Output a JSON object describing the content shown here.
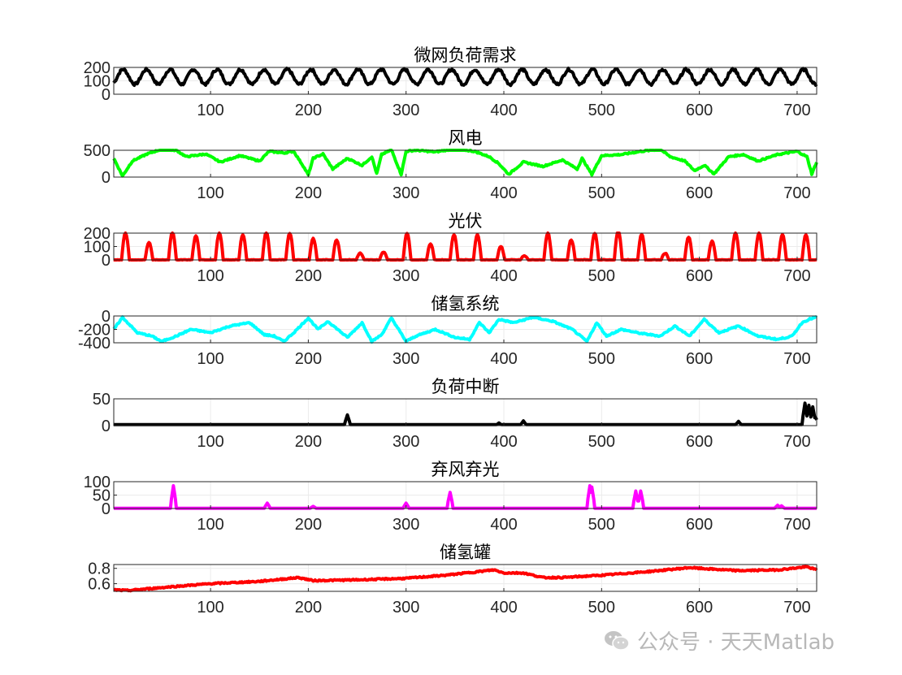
{
  "watermark": {
    "text": "公众号 · 天天Matlab",
    "icon": "wechat-icon"
  },
  "chart_data": [
    {
      "type": "line",
      "title": "微网负荷需求",
      "color": "#000000",
      "xlim": [
        1,
        720
      ],
      "xticks": [
        100,
        200,
        300,
        400,
        500,
        600,
        700
      ],
      "ylim": [
        0,
        200
      ],
      "yticks": [
        0,
        100,
        200
      ],
      "pattern": "daily",
      "base": 130,
      "amp": 55,
      "noise": 10,
      "series": [
        {
          "x": [
            1,
            720
          ],
          "y": [
            80,
            185
          ]
        }
      ]
    },
    {
      "type": "line",
      "title": "风电",
      "color": "#00ff00",
      "xlim": [
        1,
        720
      ],
      "xticks": [
        100,
        200,
        300,
        400,
        500,
        600,
        700
      ],
      "ylim": [
        0,
        500
      ],
      "yticks": [
        0,
        500
      ],
      "pattern": "keypoints",
      "series": [
        {
          "x": [
            1,
            10,
            20,
            35,
            50,
            65,
            75,
            95,
            110,
            130,
            150,
            160,
            175,
            185,
            195,
            200,
            205,
            215,
            225,
            240,
            255,
            265,
            270,
            275,
            285,
            295,
            300,
            310,
            330,
            350,
            370,
            385,
            395,
            405,
            420,
            440,
            460,
            475,
            480,
            490,
            500,
            520,
            540,
            560,
            570,
            585,
            595,
            605,
            615,
            630,
            645,
            660,
            680,
            700,
            710,
            715,
            720
          ],
          "y": [
            350,
            20,
            300,
            430,
            520,
            500,
            380,
            430,
            280,
            400,
            300,
            480,
            450,
            480,
            200,
            40,
            350,
            430,
            150,
            350,
            220,
            380,
            60,
            420,
            510,
            50,
            480,
            500,
            470,
            530,
            480,
            380,
            250,
            50,
            280,
            200,
            320,
            150,
            350,
            50,
            400,
            420,
            480,
            520,
            380,
            300,
            120,
            220,
            60,
            380,
            420,
            300,
            420,
            480,
            380,
            60,
            280
          ]
        }
      ]
    },
    {
      "type": "line",
      "title": "光伏",
      "color": "#ff0000",
      "xlim": [
        1,
        720
      ],
      "xticks": [
        100,
        200,
        300,
        400,
        500,
        600,
        700
      ],
      "ylim": [
        0,
        200
      ],
      "yticks": [
        0,
        100,
        200
      ],
      "pattern": "pv",
      "peaks": [
        200,
        130,
        210,
        180,
        200,
        190,
        210,
        200,
        160,
        150,
        50,
        60,
        200,
        120,
        190,
        190,
        100,
        30,
        200,
        150,
        200,
        220,
        190,
        50,
        170,
        140,
        200,
        200,
        190,
        190
      ],
      "series": [
        {
          "x": [
            1,
            720
          ],
          "y": [
            0,
            220
          ]
        }
      ]
    },
    {
      "type": "line",
      "title": "储氢系统",
      "color": "#00ffff",
      "xlim": [
        1,
        720
      ],
      "xticks": [
        100,
        200,
        300,
        400,
        500,
        600,
        700
      ],
      "ylim": [
        -400,
        0
      ],
      "yticks": [
        -400,
        -200,
        0
      ],
      "pattern": "keypoints",
      "series": [
        {
          "x": [
            1,
            10,
            25,
            40,
            50,
            65,
            80,
            100,
            120,
            140,
            155,
            165,
            175,
            185,
            200,
            210,
            220,
            240,
            255,
            265,
            275,
            285,
            300,
            310,
            330,
            350,
            365,
            375,
            385,
            395,
            410,
            430,
            450,
            470,
            485,
            495,
            505,
            520,
            540,
            560,
            575,
            590,
            605,
            620,
            640,
            660,
            680,
            695,
            705,
            712,
            720
          ],
          "y": [
            -200,
            -20,
            -250,
            -300,
            -380,
            -300,
            -200,
            -250,
            -150,
            -100,
            -280,
            -300,
            -380,
            -250,
            -30,
            -200,
            -80,
            -320,
            -100,
            -380,
            -280,
            -30,
            -380,
            -300,
            -200,
            -320,
            -350,
            -100,
            -250,
            -50,
            -100,
            -20,
            -80,
            -200,
            -380,
            -100,
            -300,
            -200,
            -260,
            -300,
            -150,
            -300,
            -50,
            -250,
            -150,
            -300,
            -350,
            -300,
            -100,
            -50,
            -20
          ]
        }
      ]
    },
    {
      "type": "line",
      "title": "负荷中断",
      "color": "#000000",
      "xlim": [
        1,
        720
      ],
      "xticks": [
        100,
        200,
        300,
        400,
        500,
        600,
        700
      ],
      "ylim": [
        0,
        50
      ],
      "yticks": [
        0,
        50
      ],
      "pattern": "spikes",
      "baseline": 2,
      "spikes": [
        [
          240,
          20
        ],
        [
          395,
          5
        ],
        [
          420,
          9
        ],
        [
          640,
          8
        ],
        [
          708,
          42
        ],
        [
          712,
          38
        ],
        [
          716,
          35
        ],
        [
          719,
          15
        ]
      ],
      "series": [
        {
          "x": [
            1,
            720
          ],
          "y": [
            0,
            45
          ]
        }
      ]
    },
    {
      "type": "line",
      "title": "弃风弃光",
      "color": "#ff00ff",
      "xlim": [
        1,
        720
      ],
      "xticks": [
        100,
        200,
        300,
        400,
        500,
        600,
        700
      ],
      "ylim": [
        0,
        100
      ],
      "yticks": [
        0,
        50,
        100
      ],
      "pattern": "spikes",
      "baseline": 1,
      "spikes": [
        [
          62,
          85
        ],
        [
          158,
          20
        ],
        [
          205,
          8
        ],
        [
          300,
          20
        ],
        [
          345,
          60
        ],
        [
          488,
          85
        ],
        [
          490,
          80
        ],
        [
          535,
          65
        ],
        [
          540,
          65
        ],
        [
          680,
          12
        ],
        [
          684,
          10
        ]
      ],
      "series": [
        {
          "x": [
            1,
            720
          ],
          "y": [
            0,
            85
          ]
        }
      ]
    },
    {
      "type": "line",
      "title": "储氢罐",
      "color": "#ff0000",
      "xlim": [
        1,
        720
      ],
      "xticks": [
        100,
        200,
        300,
        400,
        500,
        600,
        700
      ],
      "ylim": [
        0.5,
        0.85
      ],
      "yticks": [
        0.6,
        0.8
      ],
      "pattern": "keypoints",
      "series": [
        {
          "x": [
            1,
            15,
            60,
            100,
            150,
            190,
            205,
            250,
            300,
            340,
            390,
            400,
            420,
            440,
            460,
            500,
            550,
            590,
            600,
            640,
            680,
            710,
            720
          ],
          "y": [
            0.52,
            0.51,
            0.56,
            0.6,
            0.63,
            0.68,
            0.64,
            0.65,
            0.67,
            0.71,
            0.78,
            0.74,
            0.74,
            0.68,
            0.68,
            0.71,
            0.76,
            0.81,
            0.8,
            0.77,
            0.78,
            0.82,
            0.78
          ]
        }
      ]
    }
  ]
}
